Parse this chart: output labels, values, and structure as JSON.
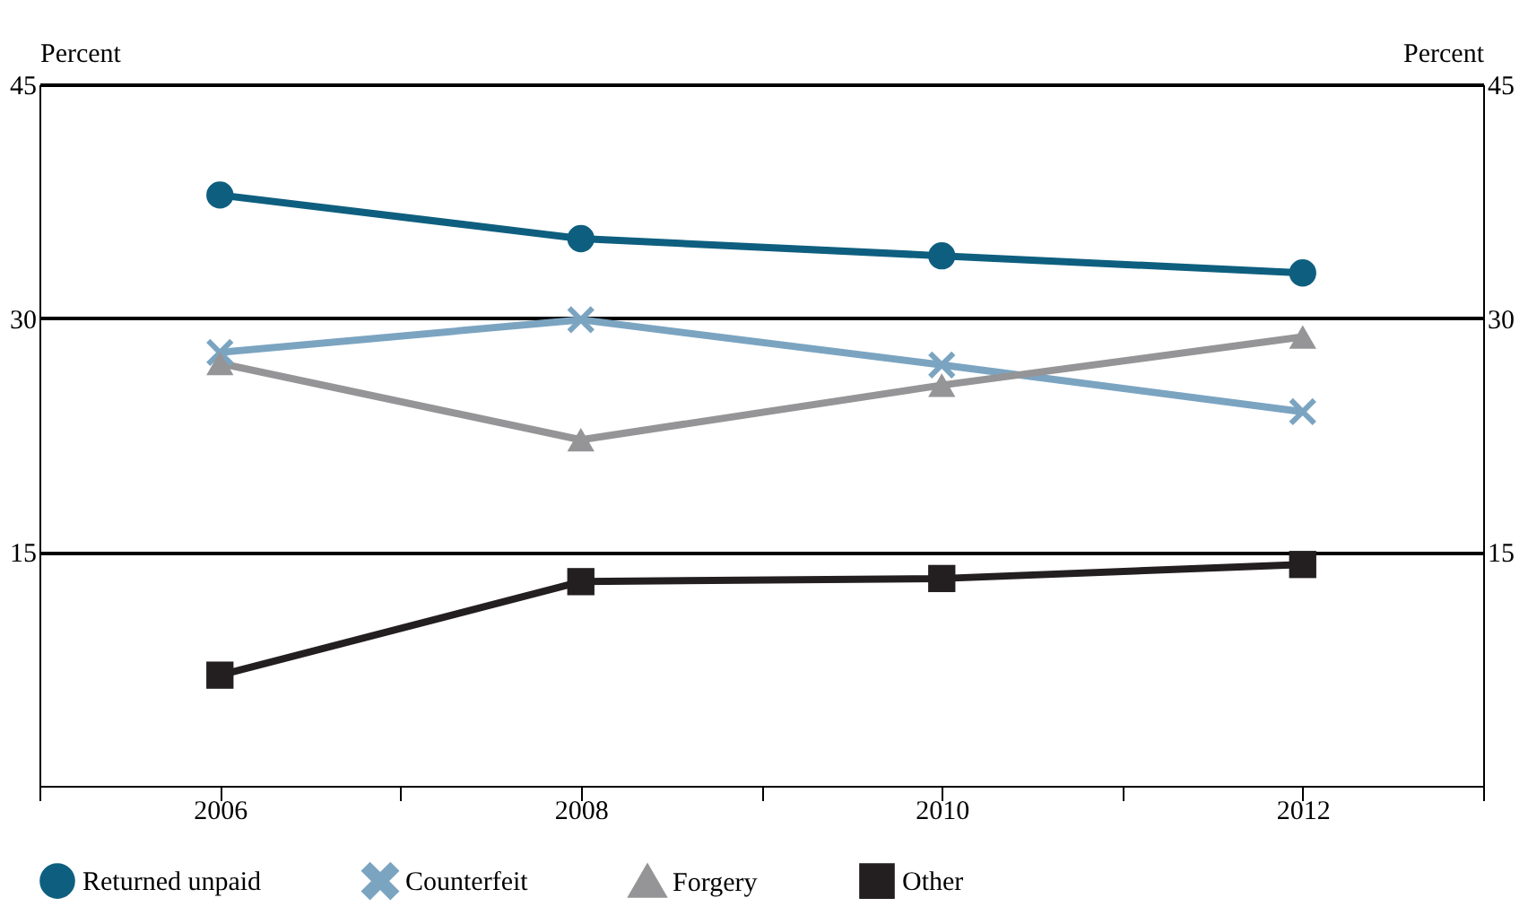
{
  "chart_data": {
    "type": "line",
    "ylabel": "Percent",
    "y2label": "Percent",
    "x": [
      2006,
      2008,
      2010,
      2012
    ],
    "xlim": [
      2005,
      2013
    ],
    "xticks": [
      {
        "value": 2005,
        "label": null
      },
      2006,
      {
        "value": 2007,
        "label": null
      },
      2008,
      {
        "value": 2009,
        "label": null
      },
      2010,
      {
        "value": 2011,
        "label": null
      },
      2012,
      {
        "value": 2013,
        "label": null
      }
    ],
    "ylim": [
      0,
      45
    ],
    "yticks": [
      15,
      30,
      45
    ],
    "y2lim": [
      0,
      45
    ],
    "y2ticks": [
      15,
      30,
      45
    ],
    "grid": "y",
    "legend": "bottom",
    "series": [
      {
        "name": "Returned unpaid",
        "color": "#0e5f7f",
        "marker": "circle",
        "values": [
          37.9,
          35.1,
          34.0,
          32.9
        ]
      },
      {
        "name": "Counterfeit",
        "color": "#7ba4c1",
        "marker": "cross",
        "values": [
          27.8,
          29.9,
          27.0,
          24.0
        ]
      },
      {
        "name": "Forgery",
        "color": "#959597",
        "marker": "triangle",
        "values": [
          27.1,
          22.2,
          25.7,
          28.8
        ]
      },
      {
        "name": "Other",
        "color": "#231f20",
        "marker": "square",
        "values": [
          7.1,
          13.1,
          13.3,
          14.2
        ]
      }
    ]
  }
}
